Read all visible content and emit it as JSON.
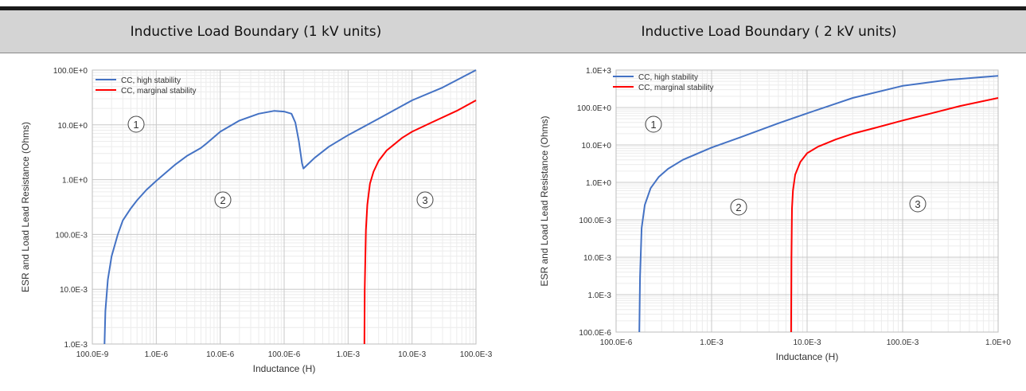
{
  "page": {
    "left_title": "Inductive Load Boundary (1 kV units)",
    "right_title": "Inductive Load Boundary ( 2 kV units)"
  },
  "colors": {
    "high": "#4472c4",
    "marginal": "#ff0000"
  },
  "chart_data": [
    {
      "type": "line",
      "title": "",
      "xlabel": "Inductance (H)",
      "ylabel": "ESR and Load Lead Resistance (Ohms)",
      "xscale": "log",
      "yscale": "log",
      "xlim": [
        1e-07,
        0.1
      ],
      "ylim": [
        0.001,
        100
      ],
      "grid": true,
      "legend_position": "top-left",
      "x_tick_labels": [
        "100.0E-9",
        "1.0E-6",
        "10.0E-6",
        "100.0E-6",
        "1.0E-3",
        "10.0E-3",
        "100.0E-3"
      ],
      "y_tick_labels": [
        "1.0E-3",
        "10.0E-3",
        "100.0E-3",
        "1.0E+0",
        "10.0E+0",
        "100.0E+0"
      ],
      "regions": [
        "1",
        "2",
        "3"
      ],
      "series": [
        {
          "name": "CC, high stability",
          "color": "high",
          "x": [
            1.55e-07,
            1.6e-07,
            1.75e-07,
            2e-07,
            2.5e-07,
            3e-07,
            4e-07,
            5e-07,
            7e-07,
            1e-06,
            2e-06,
            3e-06,
            5e-06,
            6e-06,
            1e-05,
            2e-05,
            4e-05,
            7e-05,
            0.0001,
            0.00013,
            0.00015,
            0.00017,
            0.00019,
            0.0002,
            0.0003,
            0.0005,
            0.001,
            0.003,
            0.01,
            0.03,
            0.1
          ],
          "y": [
            0.001,
            0.004,
            0.015,
            0.04,
            0.1,
            0.18,
            0.3,
            0.42,
            0.65,
            0.95,
            1.9,
            2.7,
            3.8,
            4.5,
            7.5,
            12,
            16,
            18,
            17.5,
            16,
            11,
            5,
            2,
            1.6,
            2.5,
            4,
            6.5,
            13,
            28,
            48,
            100
          ]
        },
        {
          "name": "CC, marginal stability",
          "color": "marginal",
          "x": [
            0.0018,
            0.00182,
            0.0019,
            0.002,
            0.0022,
            0.0025,
            0.003,
            0.004,
            0.005,
            0.007,
            0.01,
            0.02,
            0.05,
            0.1
          ],
          "y": [
            0.001,
            0.01,
            0.12,
            0.35,
            0.85,
            1.4,
            2.2,
            3.4,
            4.2,
            5.8,
            7.5,
            11,
            18,
            28
          ]
        }
      ]
    },
    {
      "type": "line",
      "title": "",
      "xlabel": "Inductance (H)",
      "ylabel": "ESR and Load Lead Resistance (Ohms)",
      "xscale": "log",
      "yscale": "log",
      "xlim": [
        0.0001,
        1
      ],
      "ylim": [
        0.0001,
        1000
      ],
      "grid": true,
      "legend_position": "top-left",
      "x_tick_labels": [
        "100.0E-6",
        "1.0E-3",
        "10.0E-3",
        "100.0E-3",
        "1.0E+0"
      ],
      "y_tick_labels": [
        "100.0E-6",
        "1.0E-3",
        "10.0E-3",
        "100.0E-3",
        "1.0E+0",
        "10.0E+0",
        "100.0E+0",
        "1.0E+3"
      ],
      "regions": [
        "1",
        "2",
        "3"
      ],
      "series": [
        {
          "name": "CC, high stability",
          "color": "high",
          "x": [
            0.000175,
            0.000178,
            0.000185,
            0.0002,
            0.00023,
            0.00028,
            0.00035,
            0.0005,
            0.001,
            0.002,
            0.005,
            0.01,
            0.03,
            0.1,
            0.3,
            1
          ],
          "y": [
            0.0001,
            0.003,
            0.06,
            0.25,
            0.7,
            1.4,
            2.3,
            4,
            8.5,
            16,
            38,
            70,
            180,
            380,
            550,
            700
          ]
        },
        {
          "name": "CC, marginal stability",
          "color": "marginal",
          "x": [
            0.0068,
            0.00685,
            0.00695,
            0.0071,
            0.0075,
            0.0085,
            0.01,
            0.013,
            0.02,
            0.03,
            0.05,
            0.1,
            0.2,
            0.4,
            1
          ],
          "y": [
            0.0001,
            0.01,
            0.2,
            0.6,
            1.6,
            3.5,
            6,
            9,
            14,
            20,
            28,
            45,
            70,
            110,
            180
          ]
        }
      ]
    }
  ]
}
